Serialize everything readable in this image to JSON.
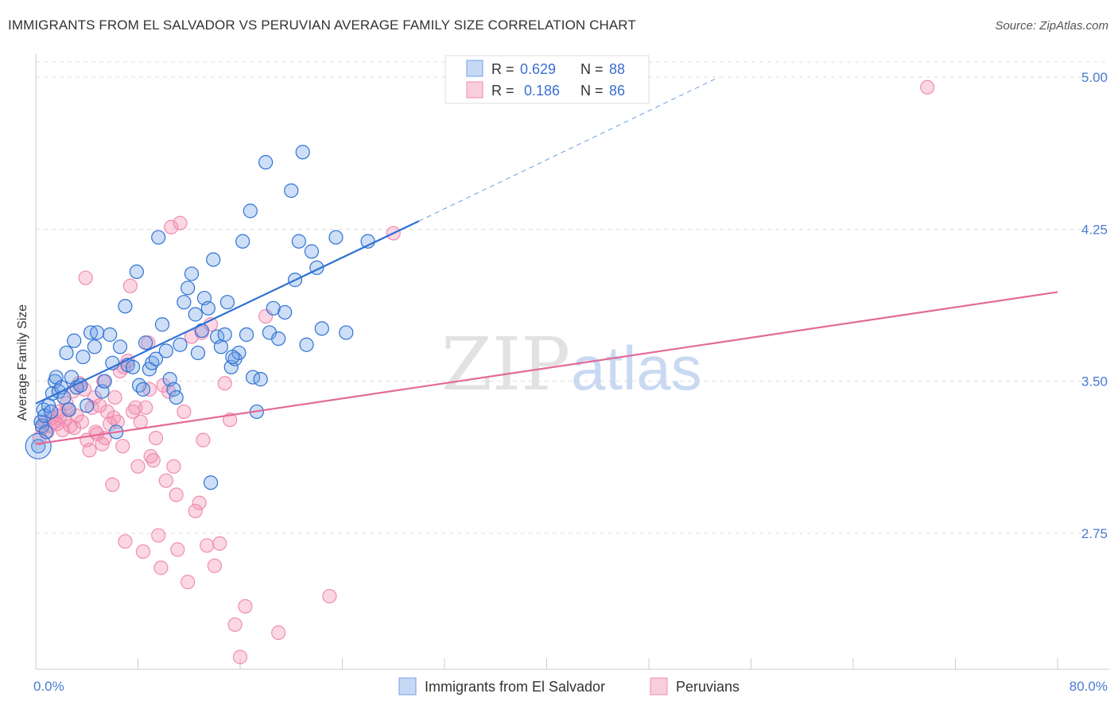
{
  "colors": {
    "blue": "#6fa0e6",
    "blue_line": "#2f72d4",
    "pink": "#f08cb0",
    "pink_line": "#e36a97",
    "grid": "#dddddd",
    "tick_label": "#4a7bd0"
  },
  "header": {
    "title": "IMMIGRANTS FROM EL SALVADOR VS PERUVIAN AVERAGE FAMILY SIZE CORRELATION CHART",
    "source": "Source: ZipAtlas.com"
  },
  "watermark": {
    "zip": "ZIP",
    "atlas": "atlas"
  },
  "legend": {
    "rows": [
      {
        "r_label": "R =",
        "r_value": "0.629",
        "n_label": "N =",
        "n_value": "88"
      },
      {
        "r_label": "R =",
        "r_value": "0.186",
        "n_label": "N =",
        "n_value": "86"
      }
    ]
  },
  "chart_data": {
    "type": "scatter",
    "title": "IMMIGRANTS FROM EL SALVADOR VS PERUVIAN AVERAGE FAMILY SIZE CORRELATION CHART",
    "xlabel": "",
    "ylabel": "Average Family Size",
    "xlim": [
      0,
      80
    ],
    "ylim": [
      2.0,
      5.1
    ],
    "x_tick_labels": [
      "0.0%",
      "80.0%"
    ],
    "y_ticks": [
      2.75,
      3.5,
      4.25,
      5.0
    ],
    "y_tick_labels": [
      "2.75",
      "3.50",
      "4.25",
      "5.00"
    ],
    "series": [
      {
        "name": "Immigrants from El Salvador",
        "r": 0.629,
        "n": 88,
        "trend": {
          "x0": 0,
          "y0": 3.39,
          "x1": 30,
          "y1": 4.29,
          "dash_to_x": 53.5,
          "dash_to_y": 5.0
        },
        "points": [
          [
            0.2,
            3.18
          ],
          [
            0.4,
            3.3
          ],
          [
            0.5,
            3.28
          ],
          [
            0.6,
            3.36
          ],
          [
            0.7,
            3.33
          ],
          [
            0.8,
            3.25
          ],
          [
            1.0,
            3.38
          ],
          [
            1.2,
            3.35
          ],
          [
            1.3,
            3.44
          ],
          [
            1.5,
            3.5
          ],
          [
            1.6,
            3.52
          ],
          [
            1.8,
            3.45
          ],
          [
            2.0,
            3.47
          ],
          [
            2.2,
            3.42
          ],
          [
            2.4,
            3.64
          ],
          [
            2.6,
            3.36
          ],
          [
            2.8,
            3.52
          ],
          [
            3.0,
            3.7
          ],
          [
            3.2,
            3.47
          ],
          [
            3.5,
            3.48
          ],
          [
            3.7,
            3.62
          ],
          [
            4.0,
            3.38
          ],
          [
            4.3,
            3.74
          ],
          [
            4.6,
            3.67
          ],
          [
            4.8,
            3.74
          ],
          [
            5.2,
            3.45
          ],
          [
            5.4,
            3.5
          ],
          [
            5.8,
            3.73
          ],
          [
            6.0,
            3.59
          ],
          [
            6.3,
            3.25
          ],
          [
            6.6,
            3.67
          ],
          [
            7.0,
            3.87
          ],
          [
            7.2,
            3.58
          ],
          [
            7.6,
            3.57
          ],
          [
            7.9,
            4.04
          ],
          [
            8.1,
            3.48
          ],
          [
            8.4,
            3.46
          ],
          [
            8.6,
            3.69
          ],
          [
            8.9,
            3.56
          ],
          [
            9.1,
            3.59
          ],
          [
            9.4,
            3.61
          ],
          [
            9.6,
            4.21
          ],
          [
            9.9,
            3.78
          ],
          [
            10.2,
            3.65
          ],
          [
            10.5,
            3.51
          ],
          [
            10.8,
            3.46
          ],
          [
            11.0,
            3.42
          ],
          [
            11.3,
            3.68
          ],
          [
            11.6,
            3.89
          ],
          [
            11.9,
            3.96
          ],
          [
            12.2,
            4.03
          ],
          [
            12.5,
            3.83
          ],
          [
            12.7,
            3.64
          ],
          [
            13.0,
            3.75
          ],
          [
            13.2,
            3.91
          ],
          [
            13.5,
            3.86
          ],
          [
            13.7,
            3.0
          ],
          [
            13.9,
            4.1
          ],
          [
            14.2,
            3.72
          ],
          [
            14.5,
            3.67
          ],
          [
            14.8,
            3.73
          ],
          [
            15.0,
            3.89
          ],
          [
            15.3,
            3.57
          ],
          [
            15.6,
            3.61
          ],
          [
            15.9,
            3.64
          ],
          [
            16.2,
            4.19
          ],
          [
            16.5,
            3.73
          ],
          [
            16.8,
            4.34
          ],
          [
            17.0,
            3.52
          ],
          [
            17.3,
            3.35
          ],
          [
            17.6,
            3.51
          ],
          [
            18.0,
            4.58
          ],
          [
            18.3,
            3.74
          ],
          [
            18.6,
            3.86
          ],
          [
            19.0,
            3.71
          ],
          [
            19.5,
            3.84
          ],
          [
            20.0,
            4.44
          ],
          [
            20.3,
            4.0
          ],
          [
            20.6,
            4.19
          ],
          [
            20.9,
            4.63
          ],
          [
            21.2,
            3.68
          ],
          [
            21.6,
            4.14
          ],
          [
            22.0,
            4.06
          ],
          [
            22.4,
            3.76
          ],
          [
            23.5,
            4.21
          ],
          [
            24.3,
            3.74
          ],
          [
            26.0,
            4.19
          ],
          [
            15.4,
            3.62
          ]
        ]
      },
      {
        "name": "Peruvians",
        "r": 0.186,
        "n": 86,
        "trend": {
          "x0": 0,
          "y0": 3.19,
          "x1": 80,
          "y1": 3.94
        },
        "points": [
          [
            0.3,
            3.22
          ],
          [
            0.5,
            3.27
          ],
          [
            0.7,
            3.3
          ],
          [
            0.9,
            3.25
          ],
          [
            1.1,
            3.28
          ],
          [
            1.3,
            3.32
          ],
          [
            1.5,
            3.3
          ],
          [
            1.7,
            3.29
          ],
          [
            1.9,
            3.33
          ],
          [
            2.1,
            3.26
          ],
          [
            2.3,
            3.31
          ],
          [
            2.5,
            3.36
          ],
          [
            2.7,
            3.28
          ],
          [
            2.9,
            3.45
          ],
          [
            3.0,
            3.27
          ],
          [
            3.2,
            3.33
          ],
          [
            3.4,
            3.49
          ],
          [
            3.6,
            3.3
          ],
          [
            3.8,
            3.46
          ],
          [
            4.0,
            3.21
          ],
          [
            4.2,
            3.16
          ],
          [
            4.4,
            3.37
          ],
          [
            4.6,
            3.42
          ],
          [
            4.8,
            3.24
          ],
          [
            5.0,
            3.38
          ],
          [
            5.2,
            3.19
          ],
          [
            5.4,
            3.22
          ],
          [
            5.6,
            3.35
          ],
          [
            5.8,
            3.29
          ],
          [
            6.0,
            2.99
          ],
          [
            6.2,
            3.42
          ],
          [
            6.4,
            3.3
          ],
          [
            6.6,
            3.55
          ],
          [
            6.8,
            3.18
          ],
          [
            7.0,
            2.71
          ],
          [
            7.2,
            3.6
          ],
          [
            7.4,
            3.97
          ],
          [
            7.6,
            3.35
          ],
          [
            7.8,
            3.37
          ],
          [
            8.0,
            3.08
          ],
          [
            8.2,
            3.3
          ],
          [
            8.4,
            2.66
          ],
          [
            8.6,
            3.37
          ],
          [
            8.8,
            3.69
          ],
          [
            9.0,
            3.13
          ],
          [
            9.2,
            3.11
          ],
          [
            9.4,
            3.22
          ],
          [
            9.6,
            2.74
          ],
          [
            9.8,
            2.58
          ],
          [
            10.0,
            3.48
          ],
          [
            10.2,
            3.01
          ],
          [
            10.4,
            3.45
          ],
          [
            10.6,
            4.26
          ],
          [
            10.8,
            3.08
          ],
          [
            11.0,
            2.94
          ],
          [
            11.3,
            4.28
          ],
          [
            11.6,
            3.35
          ],
          [
            11.9,
            2.51
          ],
          [
            12.2,
            3.72
          ],
          [
            12.5,
            2.86
          ],
          [
            12.8,
            2.9
          ],
          [
            13.1,
            3.21
          ],
          [
            13.4,
            2.69
          ],
          [
            13.7,
            3.78
          ],
          [
            14.0,
            2.59
          ],
          [
            14.4,
            2.7
          ],
          [
            14.8,
            3.49
          ],
          [
            15.2,
            3.31
          ],
          [
            15.6,
            2.3
          ],
          [
            16.0,
            2.14
          ],
          [
            16.4,
            2.39
          ],
          [
            18.0,
            3.82
          ],
          [
            19.0,
            2.26
          ],
          [
            23.0,
            2.44
          ],
          [
            28.0,
            4.23
          ],
          [
            69.8,
            4.95
          ],
          [
            6.9,
            3.57
          ],
          [
            11.1,
            2.67
          ],
          [
            4.7,
            3.25
          ],
          [
            2.4,
            3.39
          ],
          [
            1.8,
            3.35
          ],
          [
            3.9,
            4.01
          ],
          [
            8.9,
            3.46
          ],
          [
            13.0,
            3.74
          ],
          [
            5.3,
            3.5
          ],
          [
            6.1,
            3.32
          ]
        ]
      }
    ]
  },
  "bottom_legend": {
    "items": [
      {
        "label": "Immigrants from El Salvador"
      },
      {
        "label": "Peruvians"
      }
    ]
  }
}
